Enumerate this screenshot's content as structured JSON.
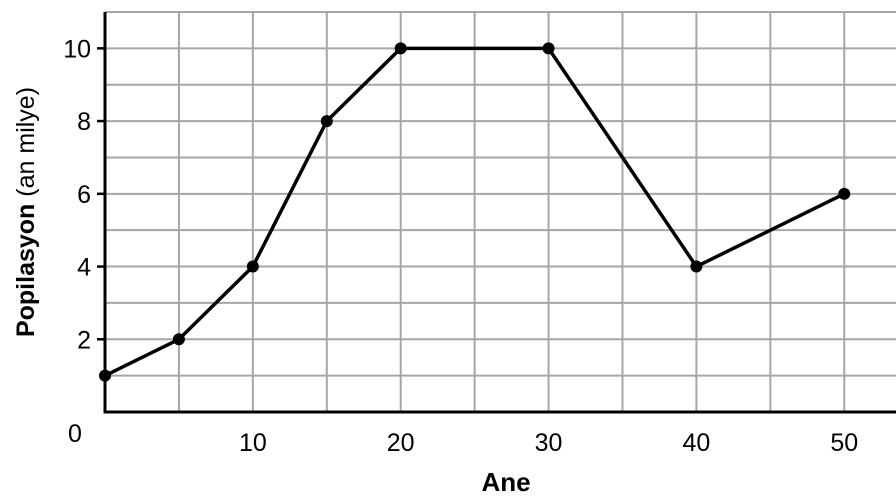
{
  "chart_data": {
    "type": "line",
    "xlabel": "Ane",
    "ylabel_bold": "Popilasyon",
    "ylabel_rest": " (an milye)",
    "origin_label": "0",
    "x": [
      0,
      5,
      10,
      15,
      20,
      30,
      40,
      50
    ],
    "series": [
      {
        "values": [
          1,
          2,
          4,
          8,
          10,
          10,
          4,
          6
        ]
      }
    ],
    "xlim": [
      0,
      53.5
    ],
    "ylim": [
      0,
      11
    ],
    "x_ticks": [
      10,
      20,
      30,
      40,
      50
    ],
    "y_ticks": [
      2,
      4,
      6,
      8,
      10
    ],
    "x_grid_step": 5,
    "y_grid_step": 1,
    "grid": true,
    "colors": {
      "line": "#000000",
      "grid": "#a6a6a6",
      "axis": "#000000"
    }
  }
}
